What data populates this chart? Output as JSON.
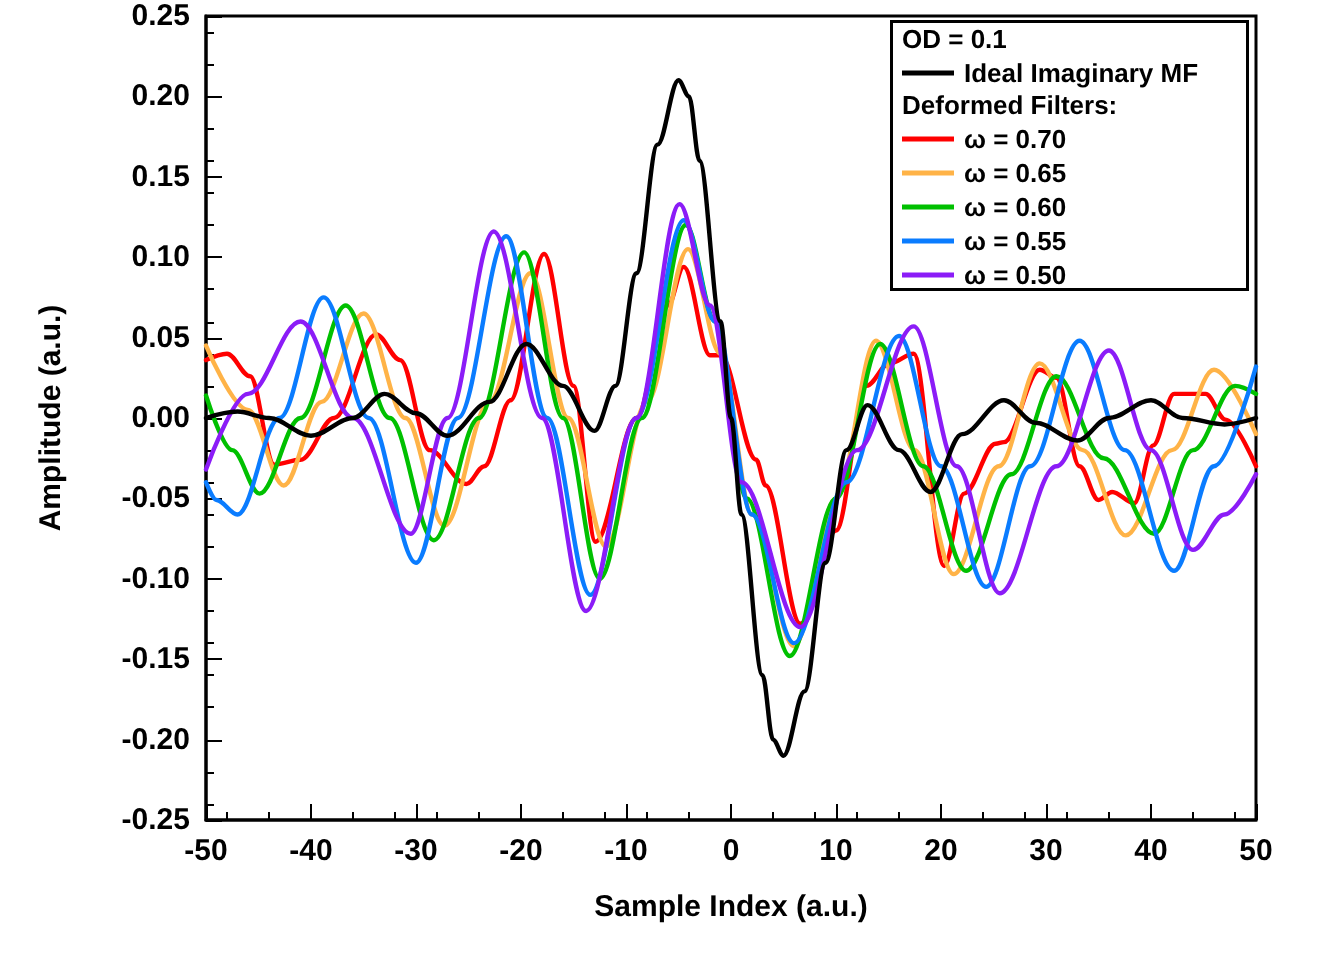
{
  "chart_data": {
    "type": "line",
    "xlabel": "Sample Index (a.u.)",
    "ylabel": "Amplitude (a.u.)",
    "legend_title": "OD = 0.1",
    "annotations": [
      "Deformed Filters:"
    ],
    "xlim": [
      -50,
      50
    ],
    "xticks": [
      -50,
      -40,
      -30,
      -20,
      -10,
      0,
      10,
      20,
      30,
      40,
      50
    ],
    "ylim": [
      -0.25,
      0.25
    ],
    "yticks": [
      {
        "value": -0.25,
        "label": "-0.25"
      },
      {
        "value": -0.2,
        "label": "-0.20"
      },
      {
        "value": -0.15,
        "label": "-0.15"
      },
      {
        "value": -0.1,
        "label": "-0.10"
      },
      {
        "value": -0.05,
        "label": "-0.05"
      },
      {
        "value": 0,
        "label": "0.00"
      },
      {
        "value": 0.05,
        "label": "0.05"
      },
      {
        "value": 0.1,
        "label": "0.10"
      },
      {
        "value": 0.15,
        "label": "0.15"
      },
      {
        "value": 0.2,
        "label": "0.20"
      },
      {
        "value": 0.25,
        "label": "0.25"
      }
    ],
    "grid": false,
    "legend": "top right",
    "marker": "none",
    "line_style": "solid",
    "series": [
      {
        "name": "Ideal Imaginary MF",
        "color": "#000000",
        "x": [
          -50,
          -47,
          -44,
          -40,
          -36,
          -33,
          -30,
          -27,
          -23,
          -19.5,
          -16,
          -13,
          -11,
          -9,
          -7,
          -5,
          -4,
          -3,
          -1,
          0,
          1,
          3,
          4,
          5,
          7,
          9,
          11,
          13,
          16,
          19,
          22,
          26,
          29,
          33,
          36,
          40,
          43,
          47,
          50
        ],
        "values": [
          0.0,
          0.004,
          0.0,
          -0.011,
          0.0,
          0.015,
          0.003,
          -0.011,
          0.01,
          0.046,
          0.02,
          -0.008,
          0.02,
          0.09,
          0.17,
          0.21,
          0.2,
          0.16,
          0.06,
          0.0,
          -0.06,
          -0.16,
          -0.2,
          -0.21,
          -0.17,
          -0.09,
          -0.02,
          0.008,
          -0.02,
          -0.046,
          -0.01,
          0.011,
          -0.003,
          -0.014,
          0.0,
          0.011,
          0.0,
          -0.004,
          0.0
        ]
      },
      {
        "name": "ω = 0.70",
        "color": "#ff0000",
        "x": [
          -50,
          -48,
          -45.8,
          -43.5,
          -41,
          -37.8,
          -33.8,
          -31.5,
          -28.7,
          -25.2,
          -23.5,
          -21,
          -17.8,
          -15,
          -12.9,
          -9,
          -6,
          -4.5,
          -2,
          -1,
          2.4,
          3.3,
          6.6,
          10,
          12.9,
          15.1,
          17.4,
          20.3,
          22.2,
          25.2,
          26,
          29.4,
          31,
          33.2,
          35,
          36.3,
          38.4,
          40.2,
          42.2,
          45.2,
          47.1,
          50
        ],
        "values": [
          0.036,
          0.04,
          0.026,
          -0.029,
          -0.026,
          0.0,
          0.052,
          0.036,
          -0.02,
          -0.041,
          -0.03,
          0.011,
          0.102,
          0.02,
          -0.077,
          0.0,
          0.07,
          0.094,
          0.039,
          0.039,
          -0.026,
          -0.042,
          -0.128,
          -0.07,
          0.02,
          0.034,
          0.04,
          -0.092,
          -0.047,
          -0.016,
          -0.015,
          0.03,
          0.025,
          -0.03,
          -0.051,
          -0.046,
          -0.053,
          -0.017,
          0.015,
          0.015,
          -0.001,
          -0.03
        ]
      },
      {
        "name": "ω = 0.65",
        "color": "#ffb347",
        "x": [
          -50,
          -46,
          -42.6,
          -39,
          -35,
          -31,
          -27.3,
          -23,
          -19.1,
          -15.5,
          -11.9,
          -8,
          -4.1,
          -1,
          2,
          6,
          10,
          13.8,
          17.5,
          21.2,
          25.5,
          29.4,
          33.5,
          37.6,
          42,
          46,
          50
        ],
        "values": [
          0.045,
          0.005,
          -0.042,
          0.01,
          0.065,
          0.0,
          -0.067,
          0.01,
          0.09,
          0.0,
          -0.08,
          0.01,
          0.105,
          0.04,
          -0.06,
          -0.142,
          -0.05,
          0.048,
          -0.02,
          -0.097,
          -0.03,
          0.034,
          -0.02,
          -0.073,
          -0.02,
          0.03,
          -0.01
        ]
      },
      {
        "name": "ω = 0.60",
        "color": "#00c000",
        "x": [
          -50,
          -47.5,
          -44.9,
          -41,
          -36.7,
          -32.5,
          -28.3,
          -24,
          -19.7,
          -16,
          -12.5,
          -8.5,
          -4.3,
          -1.5,
          1.5,
          5.6,
          10,
          14.2,
          18.3,
          22.4,
          26.7,
          31,
          35.5,
          40.3,
          44,
          48,
          50
        ],
        "values": [
          0.014,
          -0.02,
          -0.047,
          0.0,
          0.07,
          0.0,
          -0.076,
          0.0,
          0.103,
          0.0,
          -0.1,
          0.0,
          0.12,
          0.06,
          -0.05,
          -0.148,
          -0.05,
          0.046,
          -0.03,
          -0.095,
          -0.035,
          0.026,
          -0.025,
          -0.072,
          -0.02,
          0.02,
          0.015
        ]
      },
      {
        "name": "ω = 0.55",
        "color": "#0a7cff",
        "x": [
          -50,
          -49,
          -47,
          -43,
          -38.8,
          -34.5,
          -30,
          -26,
          -21.4,
          -17.5,
          -13.4,
          -9,
          -4.5,
          -1.5,
          2,
          6,
          11,
          16,
          20,
          24.3,
          28.5,
          33.2,
          37.5,
          42.2,
          46,
          50
        ],
        "values": [
          -0.04,
          -0.051,
          -0.06,
          0.0,
          0.075,
          0.0,
          -0.09,
          0.0,
          0.113,
          0.0,
          -0.11,
          0.0,
          0.123,
          0.06,
          -0.06,
          -0.14,
          -0.04,
          0.051,
          -0.03,
          -0.105,
          -0.03,
          0.048,
          -0.02,
          -0.095,
          -0.03,
          0.032
        ]
      },
      {
        "name": "ω = 0.50",
        "color": "#8b1cf7",
        "x": [
          -50,
          -46,
          -41,
          -36,
          -30.5,
          -27,
          -22.6,
          -18,
          -13.8,
          -9,
          -4.9,
          -2,
          1,
          6.6,
          12,
          17.4,
          21.5,
          25.6,
          31,
          36,
          40,
          44,
          47,
          50
        ],
        "values": [
          -0.032,
          0.015,
          0.06,
          0.0,
          -0.072,
          0.0,
          0.116,
          0.0,
          -0.12,
          0.0,
          0.133,
          0.07,
          -0.04,
          -0.13,
          -0.02,
          0.057,
          -0.03,
          -0.109,
          -0.03,
          0.042,
          -0.02,
          -0.082,
          -0.06,
          -0.035
        ]
      }
    ]
  }
}
